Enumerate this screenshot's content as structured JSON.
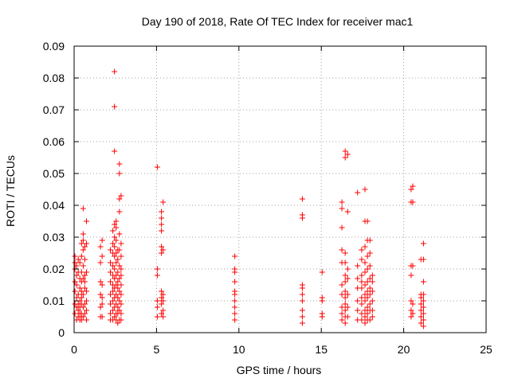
{
  "chart_data": {
    "type": "scatter",
    "title": "Day 190 of 2018, Rate Of TEC Index for receiver mac1",
    "xlabel": "GPS time / hours",
    "ylabel": "ROTI / TECUs",
    "xlim": [
      0,
      25
    ],
    "ylim": [
      0,
      0.09
    ],
    "xticks": [
      0,
      5,
      10,
      15,
      20,
      25
    ],
    "xtick_labels": [
      "0",
      "5",
      "10",
      "15",
      "20",
      "25"
    ],
    "yticks": [
      0,
      0.01,
      0.02,
      0.03,
      0.04,
      0.05,
      0.06,
      0.07,
      0.08,
      0.09
    ],
    "ytick_labels": [
      "0",
      "0.01",
      "0.02",
      "0.03",
      "0.04",
      "0.05",
      "0.06",
      "0.07",
      "0.08",
      "0.09"
    ],
    "grid": true,
    "marker": "+",
    "color": "#ff0000",
    "series": [
      {
        "name": "ROTI",
        "points": [
          [
            0.05,
            0.009
          ],
          [
            0.05,
            0.013
          ],
          [
            0.05,
            0.016
          ],
          [
            0.05,
            0.02
          ],
          [
            0.05,
            0.022
          ],
          [
            0.05,
            0.024
          ],
          [
            0.05,
            0.006
          ],
          [
            0.15,
            0.004
          ],
          [
            0.15,
            0.008
          ],
          [
            0.15,
            0.011
          ],
          [
            0.15,
            0.015
          ],
          [
            0.15,
            0.018
          ],
          [
            0.15,
            0.021
          ],
          [
            0.25,
            0.005
          ],
          [
            0.25,
            0.007
          ],
          [
            0.25,
            0.009
          ],
          [
            0.25,
            0.012
          ],
          [
            0.25,
            0.019
          ],
          [
            0.25,
            0.023
          ],
          [
            0.35,
            0.004
          ],
          [
            0.35,
            0.006
          ],
          [
            0.35,
            0.008
          ],
          [
            0.35,
            0.01
          ],
          [
            0.35,
            0.014
          ],
          [
            0.35,
            0.017
          ],
          [
            0.35,
            0.022
          ],
          [
            0.45,
            0.004
          ],
          [
            0.45,
            0.006
          ],
          [
            0.45,
            0.009
          ],
          [
            0.45,
            0.011
          ],
          [
            0.45,
            0.013
          ],
          [
            0.45,
            0.016
          ],
          [
            0.45,
            0.019
          ],
          [
            0.45,
            0.024
          ],
          [
            0.45,
            0.028
          ],
          [
            0.55,
            0.005
          ],
          [
            0.55,
            0.008
          ],
          [
            0.55,
            0.012
          ],
          [
            0.55,
            0.017
          ],
          [
            0.55,
            0.021
          ],
          [
            0.55,
            0.026
          ],
          [
            0.55,
            0.029
          ],
          [
            0.55,
            0.031
          ],
          [
            0.55,
            0.039
          ],
          [
            0.65,
            0.006
          ],
          [
            0.65,
            0.009
          ],
          [
            0.65,
            0.014
          ],
          [
            0.65,
            0.016
          ],
          [
            0.65,
            0.018
          ],
          [
            0.65,
            0.023
          ],
          [
            0.65,
            0.027
          ],
          [
            0.75,
            0.004
          ],
          [
            0.75,
            0.007
          ],
          [
            0.75,
            0.01
          ],
          [
            0.75,
            0.013
          ],
          [
            0.75,
            0.019
          ],
          [
            0.75,
            0.028
          ],
          [
            0.75,
            0.035
          ],
          [
            1.6,
            0.005
          ],
          [
            1.6,
            0.008
          ],
          [
            1.6,
            0.012
          ],
          [
            1.6,
            0.016
          ],
          [
            1.6,
            0.022
          ],
          [
            1.6,
            0.027
          ],
          [
            1.7,
            0.005
          ],
          [
            1.7,
            0.009
          ],
          [
            1.7,
            0.011
          ],
          [
            1.7,
            0.015
          ],
          [
            1.7,
            0.024
          ],
          [
            1.7,
            0.029
          ],
          [
            2.2,
            0.004
          ],
          [
            2.2,
            0.006
          ],
          [
            2.2,
            0.009
          ],
          [
            2.2,
            0.012
          ],
          [
            2.2,
            0.016
          ],
          [
            2.2,
            0.019
          ],
          [
            2.2,
            0.022
          ],
          [
            2.2,
            0.026
          ],
          [
            2.35,
            0.004
          ],
          [
            2.35,
            0.007
          ],
          [
            2.35,
            0.01
          ],
          [
            2.35,
            0.013
          ],
          [
            2.35,
            0.015
          ],
          [
            2.35,
            0.018
          ],
          [
            2.35,
            0.021
          ],
          [
            2.35,
            0.025
          ],
          [
            2.35,
            0.028
          ],
          [
            2.35,
            0.032
          ],
          [
            2.45,
            0.005
          ],
          [
            2.45,
            0.008
          ],
          [
            2.45,
            0.011
          ],
          [
            2.45,
            0.014
          ],
          [
            2.45,
            0.017
          ],
          [
            2.45,
            0.02
          ],
          [
            2.45,
            0.024
          ],
          [
            2.45,
            0.027
          ],
          [
            2.45,
            0.03
          ],
          [
            2.45,
            0.034
          ],
          [
            2.45,
            0.057
          ],
          [
            2.45,
            0.071
          ],
          [
            2.45,
            0.082
          ],
          [
            2.55,
            0.004
          ],
          [
            2.55,
            0.006
          ],
          [
            2.55,
            0.009
          ],
          [
            2.55,
            0.012
          ],
          [
            2.55,
            0.015
          ],
          [
            2.55,
            0.018
          ],
          [
            2.55,
            0.022
          ],
          [
            2.55,
            0.025
          ],
          [
            2.55,
            0.029
          ],
          [
            2.55,
            0.033
          ],
          [
            2.55,
            0.035
          ],
          [
            2.65,
            0.003
          ],
          [
            2.65,
            0.006
          ],
          [
            2.65,
            0.008
          ],
          [
            2.65,
            0.011
          ],
          [
            2.65,
            0.014
          ],
          [
            2.65,
            0.016
          ],
          [
            2.65,
            0.019
          ],
          [
            2.65,
            0.023
          ],
          [
            2.65,
            0.026
          ],
          [
            2.75,
            0.004
          ],
          [
            2.75,
            0.007
          ],
          [
            2.75,
            0.01
          ],
          [
            2.75,
            0.013
          ],
          [
            2.75,
            0.017
          ],
          [
            2.75,
            0.021
          ],
          [
            2.75,
            0.026
          ],
          [
            2.75,
            0.031
          ],
          [
            2.75,
            0.038
          ],
          [
            2.75,
            0.042
          ],
          [
            2.75,
            0.05
          ],
          [
            2.75,
            0.053
          ],
          [
            2.85,
            0.004
          ],
          [
            2.85,
            0.006
          ],
          [
            2.85,
            0.009
          ],
          [
            2.85,
            0.012
          ],
          [
            2.85,
            0.015
          ],
          [
            2.85,
            0.018
          ],
          [
            2.85,
            0.02
          ],
          [
            2.85,
            0.024
          ],
          [
            2.85,
            0.028
          ],
          [
            2.85,
            0.043
          ],
          [
            5.05,
            0.005
          ],
          [
            5.05,
            0.008
          ],
          [
            5.05,
            0.01
          ],
          [
            5.05,
            0.018
          ],
          [
            5.05,
            0.02
          ],
          [
            5.05,
            0.052
          ],
          [
            5.3,
            0.006
          ],
          [
            5.3,
            0.009
          ],
          [
            5.3,
            0.011
          ],
          [
            5.3,
            0.013
          ],
          [
            5.3,
            0.025
          ],
          [
            5.3,
            0.027
          ],
          [
            5.3,
            0.032
          ],
          [
            5.3,
            0.034
          ],
          [
            5.3,
            0.036
          ],
          [
            5.3,
            0.038
          ],
          [
            5.4,
            0.005
          ],
          [
            5.4,
            0.007
          ],
          [
            5.4,
            0.01
          ],
          [
            5.4,
            0.012
          ],
          [
            5.4,
            0.026
          ],
          [
            5.4,
            0.041
          ],
          [
            9.75,
            0.004
          ],
          [
            9.75,
            0.006
          ],
          [
            9.75,
            0.008
          ],
          [
            9.75,
            0.01
          ],
          [
            9.75,
            0.012
          ],
          [
            9.75,
            0.013
          ],
          [
            9.75,
            0.016
          ],
          [
            9.75,
            0.019
          ],
          [
            9.75,
            0.02
          ],
          [
            9.75,
            0.024
          ],
          [
            13.85,
            0.003
          ],
          [
            13.85,
            0.005
          ],
          [
            13.85,
            0.007
          ],
          [
            13.85,
            0.01
          ],
          [
            13.85,
            0.012
          ],
          [
            13.85,
            0.014
          ],
          [
            13.85,
            0.015
          ],
          [
            13.85,
            0.036
          ],
          [
            13.85,
            0.037
          ],
          [
            13.85,
            0.042
          ],
          [
            15.05,
            0.005
          ],
          [
            15.05,
            0.006
          ],
          [
            15.05,
            0.01
          ],
          [
            15.05,
            0.011
          ],
          [
            15.05,
            0.019
          ],
          [
            16.25,
            0.004
          ],
          [
            16.25,
            0.006
          ],
          [
            16.25,
            0.008
          ],
          [
            16.25,
            0.012
          ],
          [
            16.25,
            0.015
          ],
          [
            16.25,
            0.022
          ],
          [
            16.25,
            0.026
          ],
          [
            16.25,
            0.033
          ],
          [
            16.25,
            0.039
          ],
          [
            16.25,
            0.041
          ],
          [
            16.45,
            0.003
          ],
          [
            16.45,
            0.005
          ],
          [
            16.45,
            0.007
          ],
          [
            16.45,
            0.009
          ],
          [
            16.45,
            0.011
          ],
          [
            16.45,
            0.013
          ],
          [
            16.45,
            0.016
          ],
          [
            16.45,
            0.018
          ],
          [
            16.45,
            0.022
          ],
          [
            16.45,
            0.025
          ],
          [
            16.45,
            0.055
          ],
          [
            16.45,
            0.057
          ],
          [
            16.6,
            0.005
          ],
          [
            16.6,
            0.008
          ],
          [
            16.6,
            0.012
          ],
          [
            16.6,
            0.017
          ],
          [
            16.6,
            0.02
          ],
          [
            16.6,
            0.038
          ],
          [
            16.6,
            0.056
          ],
          [
            17.2,
            0.004
          ],
          [
            17.2,
            0.007
          ],
          [
            17.2,
            0.01
          ],
          [
            17.2,
            0.014
          ],
          [
            17.2,
            0.017
          ],
          [
            17.2,
            0.021
          ],
          [
            17.2,
            0.044
          ],
          [
            17.45,
            0.004
          ],
          [
            17.45,
            0.006
          ],
          [
            17.45,
            0.009
          ],
          [
            17.45,
            0.011
          ],
          [
            17.45,
            0.014
          ],
          [
            17.45,
            0.016
          ],
          [
            17.45,
            0.018
          ],
          [
            17.45,
            0.023
          ],
          [
            17.45,
            0.026
          ],
          [
            17.65,
            0.003
          ],
          [
            17.65,
            0.005
          ],
          [
            17.65,
            0.007
          ],
          [
            17.65,
            0.01
          ],
          [
            17.65,
            0.012
          ],
          [
            17.65,
            0.015
          ],
          [
            17.65,
            0.019
          ],
          [
            17.65,
            0.022
          ],
          [
            17.65,
            0.027
          ],
          [
            17.65,
            0.035
          ],
          [
            17.65,
            0.045
          ],
          [
            17.8,
            0.004
          ],
          [
            17.8,
            0.006
          ],
          [
            17.8,
            0.008
          ],
          [
            17.8,
            0.011
          ],
          [
            17.8,
            0.013
          ],
          [
            17.8,
            0.016
          ],
          [
            17.8,
            0.02
          ],
          [
            17.8,
            0.024
          ],
          [
            17.8,
            0.029
          ],
          [
            17.8,
            0.035
          ],
          [
            17.95,
            0.004
          ],
          [
            17.95,
            0.007
          ],
          [
            17.95,
            0.009
          ],
          [
            17.95,
            0.012
          ],
          [
            17.95,
            0.014
          ],
          [
            17.95,
            0.017
          ],
          [
            17.95,
            0.021
          ],
          [
            17.95,
            0.025
          ],
          [
            17.95,
            0.029
          ],
          [
            18.1,
            0.005
          ],
          [
            18.1,
            0.007
          ],
          [
            18.1,
            0.01
          ],
          [
            18.1,
            0.013
          ],
          [
            18.1,
            0.016
          ],
          [
            18.1,
            0.018
          ],
          [
            20.45,
            0.005
          ],
          [
            20.45,
            0.007
          ],
          [
            20.45,
            0.01
          ],
          [
            20.45,
            0.018
          ],
          [
            20.45,
            0.021
          ],
          [
            20.45,
            0.041
          ],
          [
            20.45,
            0.045
          ],
          [
            20.55,
            0.006
          ],
          [
            20.55,
            0.009
          ],
          [
            20.55,
            0.021
          ],
          [
            20.55,
            0.041
          ],
          [
            20.55,
            0.046
          ],
          [
            21.05,
            0.003
          ],
          [
            21.05,
            0.005
          ],
          [
            21.05,
            0.007
          ],
          [
            21.05,
            0.009
          ],
          [
            21.05,
            0.011
          ],
          [
            21.05,
            0.012
          ],
          [
            21.05,
            0.023
          ],
          [
            21.2,
            0.002
          ],
          [
            21.2,
            0.004
          ],
          [
            21.2,
            0.006
          ],
          [
            21.2,
            0.008
          ],
          [
            21.2,
            0.01
          ],
          [
            21.2,
            0.012
          ],
          [
            21.2,
            0.016
          ],
          [
            21.2,
            0.023
          ],
          [
            21.2,
            0.028
          ]
        ]
      }
    ]
  }
}
